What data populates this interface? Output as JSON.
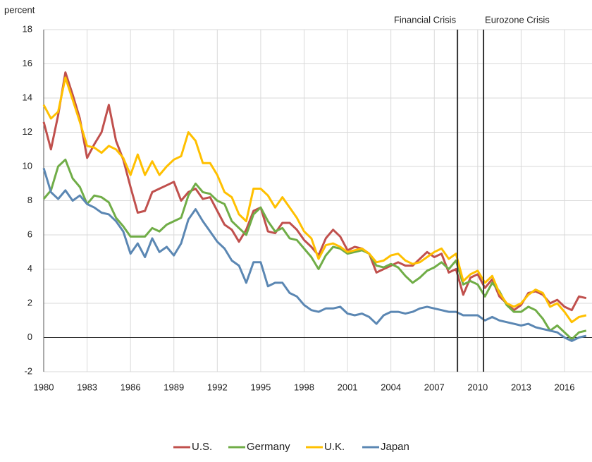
{
  "chart_data": {
    "type": "line",
    "y_label": "percent",
    "x": [
      1980,
      1980.5,
      1981,
      1981.5,
      1982,
      1982.5,
      1983,
      1983.5,
      1984,
      1984.5,
      1985,
      1985.5,
      1986,
      1986.5,
      1987,
      1987.5,
      1988,
      1988.5,
      1989,
      1989.5,
      1990,
      1990.5,
      1991,
      1991.5,
      1992,
      1992.5,
      1993,
      1993.5,
      1994,
      1994.5,
      1995,
      1995.5,
      1996,
      1996.5,
      1997,
      1997.5,
      1998,
      1998.5,
      1999,
      1999.5,
      2000,
      2000.5,
      2001,
      2001.5,
      2002,
      2002.5,
      2003,
      2003.5,
      2004,
      2004.5,
      2005,
      2005.5,
      2006,
      2006.5,
      2007,
      2007.5,
      2008,
      2008.5,
      2009,
      2009.5,
      2010,
      2010.5,
      2011,
      2011.5,
      2012,
      2012.5,
      2013,
      2013.5,
      2014,
      2014.5,
      2015,
      2015.5,
      2016,
      2016.5,
      2017,
      2017.5
    ],
    "series": [
      {
        "name": "U.S.",
        "color": "#c0504d",
        "values": [
          12.6,
          11.0,
          13.0,
          15.5,
          14.2,
          12.8,
          10.5,
          11.3,
          12.0,
          13.6,
          11.5,
          10.4,
          8.8,
          7.3,
          7.4,
          8.5,
          8.7,
          8.9,
          9.1,
          8.0,
          8.5,
          8.7,
          8.1,
          8.2,
          7.4,
          6.6,
          6.3,
          5.6,
          6.3,
          7.4,
          7.6,
          6.2,
          6.1,
          6.7,
          6.7,
          6.3,
          5.7,
          5.3,
          4.8,
          5.8,
          6.3,
          5.9,
          5.1,
          5.3,
          5.2,
          4.9,
          3.8,
          4.0,
          4.2,
          4.4,
          4.2,
          4.2,
          4.6,
          5.0,
          4.7,
          4.9,
          3.8,
          4.0,
          2.5,
          3.5,
          3.7,
          2.9,
          3.4,
          2.4,
          2.0,
          1.6,
          1.9,
          2.6,
          2.7,
          2.5,
          2.0,
          2.2,
          1.8,
          1.6,
          2.4,
          2.3
        ]
      },
      {
        "name": "Germany",
        "color": "#70ad47",
        "values": [
          8.1,
          8.6,
          10.0,
          10.4,
          9.3,
          8.8,
          7.8,
          8.3,
          8.2,
          7.9,
          7.0,
          6.5,
          5.9,
          5.9,
          5.9,
          6.4,
          6.2,
          6.6,
          6.8,
          7.0,
          8.3,
          9.0,
          8.5,
          8.4,
          8.0,
          7.8,
          6.8,
          6.4,
          6.0,
          7.2,
          7.6,
          6.8,
          6.2,
          6.4,
          5.8,
          5.7,
          5.2,
          4.7,
          4.0,
          4.8,
          5.3,
          5.2,
          4.9,
          5.0,
          5.1,
          4.9,
          4.2,
          4.1,
          4.3,
          4.1,
          3.6,
          3.2,
          3.5,
          3.9,
          4.1,
          4.4,
          4.0,
          4.5,
          3.1,
          3.3,
          3.1,
          2.4,
          3.2,
          2.7,
          1.9,
          1.5,
          1.5,
          1.8,
          1.6,
          1.1,
          0.4,
          0.7,
          0.3,
          -0.1,
          0.3,
          0.4
        ]
      },
      {
        "name": "U.K.",
        "color": "#ffc000",
        "values": [
          13.6,
          12.8,
          13.2,
          15.2,
          13.9,
          12.6,
          11.2,
          11.1,
          10.8,
          11.2,
          11.0,
          10.5,
          9.5,
          10.7,
          9.5,
          10.3,
          9.5,
          10.0,
          10.4,
          10.6,
          12.0,
          11.5,
          10.2,
          10.2,
          9.5,
          8.5,
          8.2,
          7.2,
          6.8,
          8.7,
          8.7,
          8.3,
          7.6,
          8.2,
          7.6,
          7.0,
          6.2,
          5.8,
          4.6,
          5.4,
          5.5,
          5.3,
          5.0,
          5.1,
          5.2,
          4.9,
          4.4,
          4.5,
          4.8,
          4.9,
          4.5,
          4.3,
          4.4,
          4.7,
          5.0,
          5.2,
          4.6,
          4.9,
          3.3,
          3.7,
          3.9,
          3.2,
          3.6,
          2.6,
          2.0,
          1.8,
          2.0,
          2.5,
          2.8,
          2.6,
          1.8,
          2.0,
          1.5,
          0.9,
          1.2,
          1.3
        ]
      },
      {
        "name": "Japan",
        "color": "#5b87b3",
        "values": [
          9.9,
          8.5,
          8.1,
          8.6,
          8.0,
          8.3,
          7.8,
          7.6,
          7.3,
          7.2,
          6.8,
          6.2,
          4.9,
          5.5,
          4.7,
          5.8,
          5.0,
          5.3,
          4.8,
          5.5,
          6.9,
          7.5,
          6.8,
          6.2,
          5.6,
          5.2,
          4.5,
          4.2,
          3.2,
          4.4,
          4.4,
          3.0,
          3.2,
          3.2,
          2.6,
          2.4,
          1.9,
          1.6,
          1.5,
          1.7,
          1.7,
          1.8,
          1.4,
          1.3,
          1.4,
          1.2,
          0.8,
          1.3,
          1.5,
          1.5,
          1.4,
          1.5,
          1.7,
          1.8,
          1.7,
          1.6,
          1.5,
          1.5,
          1.3,
          1.3,
          1.3,
          1.0,
          1.2,
          1.0,
          0.9,
          0.8,
          0.7,
          0.8,
          0.6,
          0.5,
          0.4,
          0.3,
          0.0,
          -0.2,
          0.0,
          0.1
        ]
      }
    ],
    "events": [
      {
        "x": 2008.6,
        "label": "Financial Crisis"
      },
      {
        "x": 2010.4,
        "label": "Eurozone Crisis"
      }
    ],
    "xlim": [
      1980,
      2017.9
    ],
    "ylim": [
      -2,
      18
    ],
    "xticks": [
      1980,
      1983,
      1986,
      1989,
      1992,
      1995,
      1998,
      2001,
      2004,
      2007,
      2010,
      2013,
      2016
    ],
    "yticks": [
      -2,
      0,
      2,
      4,
      6,
      8,
      10,
      12,
      14,
      16,
      18
    ],
    "grid": true
  }
}
